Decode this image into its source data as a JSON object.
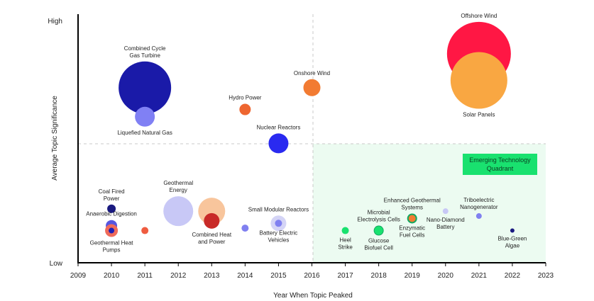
{
  "chart_data": {
    "type": "bubble",
    "title": "",
    "xlabel": "Year When Topic Peaked",
    "ylabel": "Average Topic Significance",
    "xlim": [
      2009,
      2023
    ],
    "ylim": [
      0,
      100
    ],
    "xticks": [
      "2009",
      "2010",
      "2011",
      "2012",
      "2013",
      "2014",
      "2015",
      "2016",
      "2017",
      "2018",
      "2019",
      "2020",
      "2021",
      "2022",
      "2023"
    ],
    "ytick_high": "High",
    "ytick_low": "Low",
    "quadrant_label_1": "Emerging Technology",
    "quadrant_label_2": "Quadrant",
    "colors": {
      "axis": "#000000",
      "quadrant_fill": "#ecfbf1",
      "quadrant_badge": "#19e16f"
    },
    "points": [
      {
        "label": [
          "Combined Cycle",
          "Gas Turbine"
        ],
        "year": 2011.0,
        "sig": 72,
        "r": 37,
        "color": "#1a1aa8",
        "label_pos": "above"
      },
      {
        "label": [
          "Liquefied Natural Gas"
        ],
        "year": 2011.0,
        "sig": 60,
        "r": 14,
        "color": "#8080f4",
        "label_pos": "below"
      },
      {
        "label": [
          "Onshore Wind"
        ],
        "year": 2016.0,
        "sig": 72,
        "r": 12,
        "color": "#f27b32",
        "label_pos": "above"
      },
      {
        "label": [
          "Hydro Power"
        ],
        "year": 2014.0,
        "sig": 63,
        "r": 8,
        "color": "#ee6630",
        "label_pos": "above"
      },
      {
        "label": [
          "Nuclear Reactors"
        ],
        "year": 2015.0,
        "sig": 49,
        "r": 14,
        "color": "#2a2af0",
        "label_pos": "above"
      },
      {
        "label": [
          "Offshore Wind"
        ],
        "year": 2021.0,
        "sig": 86,
        "r": 45,
        "color": "#ff1744",
        "label_pos": "above"
      },
      {
        "label": [
          "Solar Panels"
        ],
        "year": 2021.0,
        "sig": 75,
        "r": 40,
        "color": "#f9a742",
        "label_pos": "below"
      },
      {
        "label": [
          "Coal Fired",
          "Power"
        ],
        "year": 2010.0,
        "sig": 22,
        "r": 6,
        "color": "#1a1a80",
        "label_pos": "above"
      },
      {
        "label": [
          "Anaerobic Digestion"
        ],
        "year": 2010.0,
        "sig": 15,
        "r": 8,
        "color": "#5656e0",
        "label_pos": "above"
      },
      {
        "label": [
          "Geothermal Heat",
          "Pumps"
        ],
        "year": 2010.0,
        "sig": 13,
        "r": 9,
        "color": "#ef6a5a",
        "label_pos": "below"
      },
      {
        "label": [],
        "year": 2010.0,
        "sig": 13,
        "r": 4,
        "color": "#1e1eb8",
        "label_pos": "none"
      },
      {
        "label": [],
        "year": 2011.0,
        "sig": 13,
        "r": 5,
        "color": "#ef5c40",
        "label_pos": "none"
      },
      {
        "label": [
          "Geothermal",
          "Energy"
        ],
        "year": 2012.0,
        "sig": 21,
        "r": 21,
        "color": "#c8c8f6",
        "label_pos": "above"
      },
      {
        "label": [],
        "year": 2013.0,
        "sig": 21,
        "r": 19,
        "color": "#f8c59c",
        "label_pos": "none"
      },
      {
        "label": [
          "Combined Heat",
          "and Power"
        ],
        "year": 2013.0,
        "sig": 17,
        "r": 11,
        "color": "#c82a28",
        "label_pos": "below"
      },
      {
        "label": [],
        "year": 2014.0,
        "sig": 14,
        "r": 5,
        "color": "#8080f0",
        "label_pos": "none"
      },
      {
        "label": [
          "Small Modular Reactors"
        ],
        "year": 2015.0,
        "sig": 16,
        "r": 11,
        "color": "#d4d4f6",
        "label_pos": "above"
      },
      {
        "label": [
          "Battery Electric",
          "Vehicles"
        ],
        "year": 2015.0,
        "sig": 16,
        "r": 5,
        "color": "#8080f0",
        "label_pos": "below"
      },
      {
        "label": [
          "Heel",
          "Strike"
        ],
        "year": 2017.0,
        "sig": 13,
        "r": 5,
        "color": "#19e16f",
        "label_pos": "below"
      },
      {
        "label": [
          "Microbial",
          "Electrolysis Cells"
        ],
        "year": 2018.0,
        "sig": 13,
        "r": 7,
        "color": "#12a860",
        "label_pos": "above"
      },
      {
        "label": [
          "Glucose",
          "Biofuel Cell"
        ],
        "year": 2018.0,
        "sig": 13,
        "r": 6,
        "color": "#19e16f",
        "label_pos": "below"
      },
      {
        "label": [
          "Enhanced Geothermal",
          "Systems"
        ],
        "year": 2019.0,
        "sig": 18,
        "r": 7,
        "color": "#12a860",
        "label_pos": "above"
      },
      {
        "label": [
          "Enzymatic",
          "Fuel Cells"
        ],
        "year": 2019.0,
        "sig": 18,
        "r": 5,
        "color": "#f27b32",
        "label_pos": "below"
      },
      {
        "label": [
          "Nano-Diamond",
          "Battery"
        ],
        "year": 2020.0,
        "sig": 21,
        "r": 4,
        "color": "#c8c8f6",
        "label_pos": "below"
      },
      {
        "label": [
          "Triboelectric",
          "Nanogenerator"
        ],
        "year": 2021.0,
        "sig": 19,
        "r": 4,
        "color": "#8080f0",
        "label_pos": "above"
      },
      {
        "label": [
          "Blue-Green",
          "Algae"
        ],
        "year": 2022.0,
        "sig": 13,
        "r": 3,
        "color": "#1a1a80",
        "label_pos": "below"
      }
    ]
  }
}
